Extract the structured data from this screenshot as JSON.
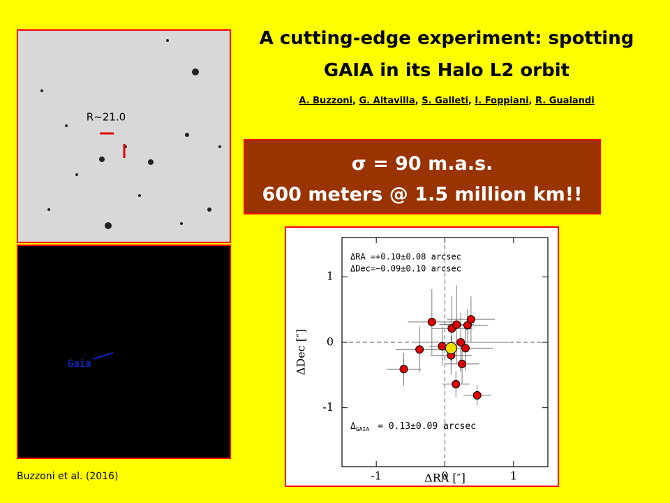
{
  "title_lines": [
    "A cutting-edge experiment: spotting",
    "GAIA in its Halo L2 orbit"
  ],
  "authors": [
    "A. Buzzoni",
    "G. Altavilla",
    "S. Galleti",
    "I. Foppiani",
    "R. Gualandi"
  ],
  "author_separator": ",",
  "highlight_box": [
    "σ = 90 m.a.s.",
    "600 meters @ 1.5 million km!!"
  ],
  "image_top_label": "R~21.0",
  "image_bottom_label": "Gaia",
  "credit": "Buzzoni et al. (2016)",
  "chart_data": {
    "type": "scatter",
    "x_label": "ΔRA [″]",
    "y_label": "ΔDec [″]",
    "annotations": [
      "ΔRA =+0.10±0.08 arcsec",
      "ΔDec=−0.09±0.10 arcsec"
    ],
    "gaia_annotation": {
      "symbol": "Δ",
      "subscript": "GAIA",
      "text": "= 0.13±0.09 arcsec"
    },
    "xlim": [
      -1.5,
      1.5
    ],
    "ylim": [
      -1.9,
      1.6
    ],
    "xticks": [
      -1,
      0,
      1
    ],
    "yticks": [
      -1,
      0,
      1
    ],
    "series": [
      {
        "color": "#e00000",
        "x": [
          -0.19,
          -0.37,
          -0.6,
          -0.04,
          0.1,
          0.17,
          0.09,
          0.23,
          0.25,
          0.3,
          0.33,
          0.38,
          0.16,
          0.47
        ],
        "values": [
          0.31,
          -0.11,
          -0.41,
          -0.06,
          0.21,
          0.27,
          -0.2,
          0.0,
          -0.33,
          -0.09,
          0.26,
          0.35,
          -0.64,
          -0.81
        ],
        "xerr": [
          0.35,
          0.35,
          0.25,
          0.2,
          0.3,
          0.25,
          0.3,
          0.7,
          0.25,
          0.4,
          0.3,
          0.35,
          0.2,
          0.2
        ],
        "yerr": [
          0.5,
          0.35,
          0.25,
          0.3,
          0.5,
          0.6,
          0.3,
          0.45,
          0.3,
          0.35,
          0.25,
          0.35,
          0.2,
          0.15
        ]
      },
      {
        "color": "#f0e000",
        "x": [
          0.09
        ],
        "values": [
          -0.09
        ]
      }
    ]
  }
}
